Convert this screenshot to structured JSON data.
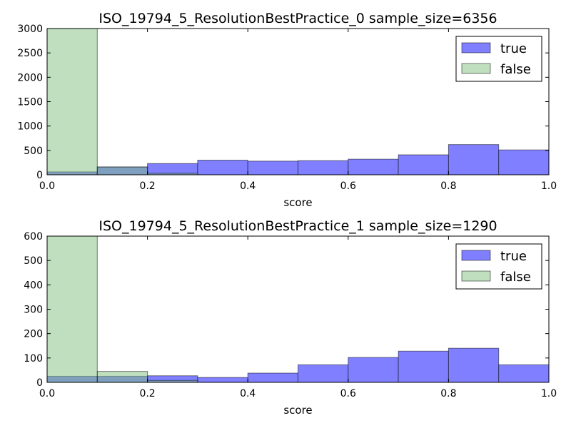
{
  "chart_data": [
    {
      "type": "bar",
      "title": "ISO_19794_5_ResolutionBestPractice_0 sample_size=6356",
      "xlabel": "score",
      "ylabel": "",
      "xlim": [
        0.0,
        1.0
      ],
      "ylim": [
        0,
        3000
      ],
      "xticks": [
        "0.0",
        "0.2",
        "0.4",
        "0.6",
        "0.8",
        "1.0"
      ],
      "yticks": [
        "0",
        "500",
        "1000",
        "1500",
        "2000",
        "2500",
        "3000"
      ],
      "bin_edges": [
        0.0,
        0.1,
        0.2,
        0.3,
        0.4,
        0.5,
        0.6,
        0.7,
        0.8,
        0.9,
        1.0
      ],
      "legend_position": "top-right",
      "series": [
        {
          "name": "true",
          "color": "#7f7fff",
          "values": [
            60,
            160,
            230,
            300,
            280,
            290,
            320,
            410,
            620,
            510
          ]
        },
        {
          "name": "false",
          "color": "#7fbf7f",
          "values": [
            3000,
            160,
            30,
            0,
            0,
            0,
            0,
            0,
            0,
            0
          ]
        }
      ]
    },
    {
      "type": "bar",
      "title": "ISO_19794_5_ResolutionBestPractice_1 sample_size=1290",
      "xlabel": "score",
      "ylabel": "",
      "xlim": [
        0.0,
        1.0
      ],
      "ylim": [
        0,
        600
      ],
      "xticks": [
        "0.0",
        "0.2",
        "0.4",
        "0.6",
        "0.8",
        "1.0"
      ],
      "yticks": [
        "0",
        "100",
        "200",
        "300",
        "400",
        "500",
        "600"
      ],
      "bin_edges": [
        0.0,
        0.1,
        0.2,
        0.3,
        0.4,
        0.5,
        0.6,
        0.7,
        0.8,
        0.9,
        1.0
      ],
      "legend_position": "top-right",
      "series": [
        {
          "name": "true",
          "color": "#7f7fff",
          "values": [
            25,
            25,
            27,
            20,
            38,
            72,
            102,
            128,
            140,
            72
          ]
        },
        {
          "name": "false",
          "color": "#7fbf7f",
          "values": [
            600,
            45,
            8,
            0,
            0,
            0,
            0,
            0,
            0,
            0
          ]
        }
      ]
    }
  ]
}
